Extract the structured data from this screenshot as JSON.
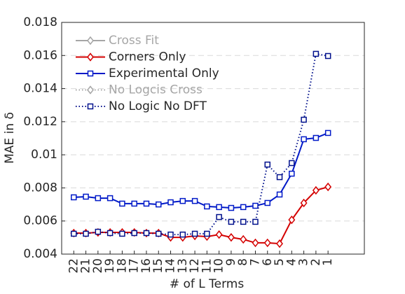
{
  "chart_data": {
    "type": "line",
    "xlabel": "# of L Terms",
    "ylabel": "MAE in δ",
    "x": [
      22,
      21,
      20,
      19,
      18,
      17,
      16,
      15,
      14,
      13,
      12,
      11,
      10,
      9,
      8,
      7,
      6,
      5,
      4,
      3,
      2,
      1
    ],
    "xlim": [
      23,
      -2
    ],
    "xticks": [
      22,
      21,
      20,
      19,
      18,
      17,
      16,
      15,
      14,
      13,
      12,
      11,
      10,
      9,
      8,
      7,
      6,
      5,
      4,
      3,
      2,
      1
    ],
    "ylim": [
      0.004,
      0.018
    ],
    "yticks": [
      0.004,
      0.006,
      0.008,
      0.01,
      0.012,
      0.014,
      0.016,
      0.018
    ],
    "grid": true,
    "legend": "upper left",
    "series": [
      {
        "name": "Cross Fit",
        "color": "#a6a6a6",
        "linestyle": "solid",
        "marker": "diamond",
        "values": [
          null,
          null,
          null,
          null,
          null,
          null,
          null,
          null,
          null,
          null,
          null,
          null,
          null,
          null,
          null,
          null,
          null,
          null,
          null,
          null,
          null,
          null
        ]
      },
      {
        "name": "Corners Only",
        "color": "#d40000",
        "linestyle": "solid",
        "marker": "diamond",
        "values": [
          0.00527,
          0.00527,
          0.00531,
          0.00531,
          0.00531,
          0.00531,
          0.00527,
          0.00527,
          0.00501,
          0.00501,
          0.0051,
          0.00506,
          0.00518,
          0.00501,
          0.00489,
          0.00468,
          0.00468,
          0.00463,
          0.00607,
          0.00709,
          0.00785,
          0.00806
        ]
      },
      {
        "name": "Experimental Only",
        "color": "#0019c8",
        "linestyle": "solid",
        "marker": "square",
        "values": [
          0.00743,
          0.00747,
          0.00738,
          0.00738,
          0.00705,
          0.00705,
          0.00705,
          0.007,
          0.00713,
          0.00721,
          0.00721,
          0.00688,
          0.00684,
          0.00679,
          0.00684,
          0.00692,
          0.00709,
          0.0076,
          0.00886,
          0.01094,
          0.01102,
          0.01132
        ]
      },
      {
        "name": "No Logcis Cross",
        "color": "#a6a6a6",
        "linestyle": "dotted",
        "marker": "diamond",
        "values": [
          null,
          null,
          null,
          null,
          null,
          null,
          null,
          null,
          null,
          null,
          null,
          null,
          null,
          null,
          null,
          null,
          null,
          null,
          null,
          null,
          null,
          null
        ]
      },
      {
        "name": "No Logic No DFT",
        "color": "#00108c",
        "linestyle": "dotted",
        "marker": "square",
        "values": [
          0.00523,
          0.00523,
          0.00535,
          0.00527,
          0.00523,
          0.00527,
          0.00527,
          0.00523,
          0.00518,
          0.00518,
          0.00523,
          0.00523,
          0.00624,
          0.00595,
          0.00595,
          0.00595,
          0.00941,
          0.00865,
          0.0095,
          0.01212,
          0.0161,
          0.01597
        ]
      }
    ]
  }
}
